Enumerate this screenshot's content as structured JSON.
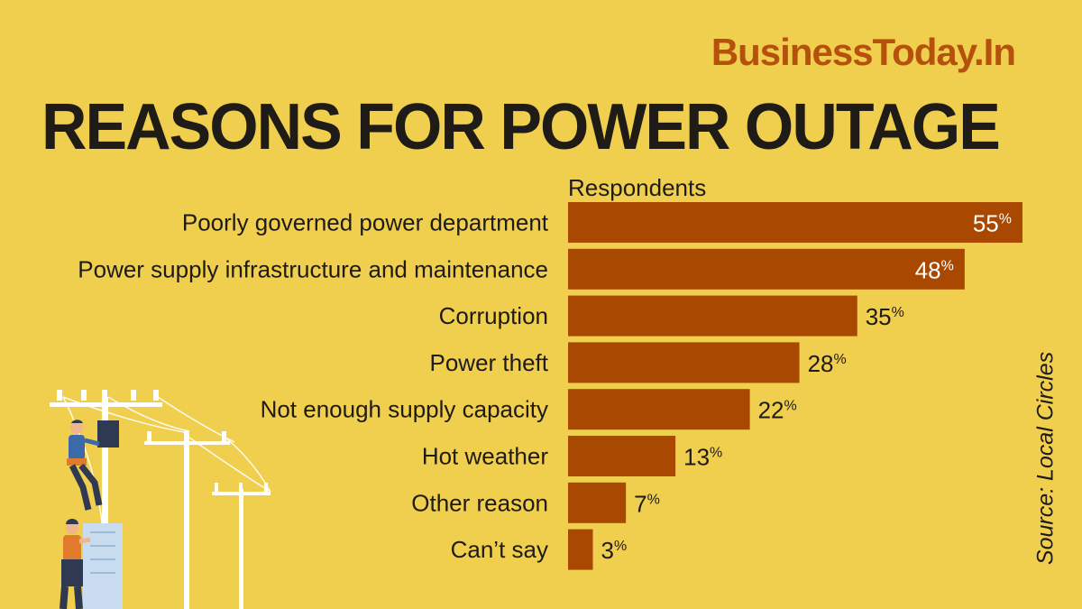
{
  "brand": "BusinessToday.In",
  "title": "REASONS FOR POWER OUTAGE",
  "source": "Source: Local Circles",
  "colors": {
    "background": "#f0ce4e",
    "bar": "#a94800",
    "brand": "#b5500d",
    "text": "#1f1b16"
  },
  "illustration": {
    "icon": "electricians-on-power-poles-icon"
  },
  "chart_data": {
    "type": "bar",
    "orientation": "horizontal",
    "legend": "Respondents",
    "unit": "%",
    "categories": [
      "Poorly governed power department",
      "Power supply infrastructure and maintenance",
      "Corruption",
      "Power theft",
      "Not enough supply capacity",
      "Hot weather",
      "Other reason",
      "Can’t say"
    ],
    "values": [
      55,
      48,
      35,
      28,
      22,
      13,
      7,
      3
    ],
    "xlim": [
      0,
      55
    ],
    "grid": false,
    "title": "REASONS FOR POWER OUTAGE",
    "source": "Source: Local Circles"
  }
}
